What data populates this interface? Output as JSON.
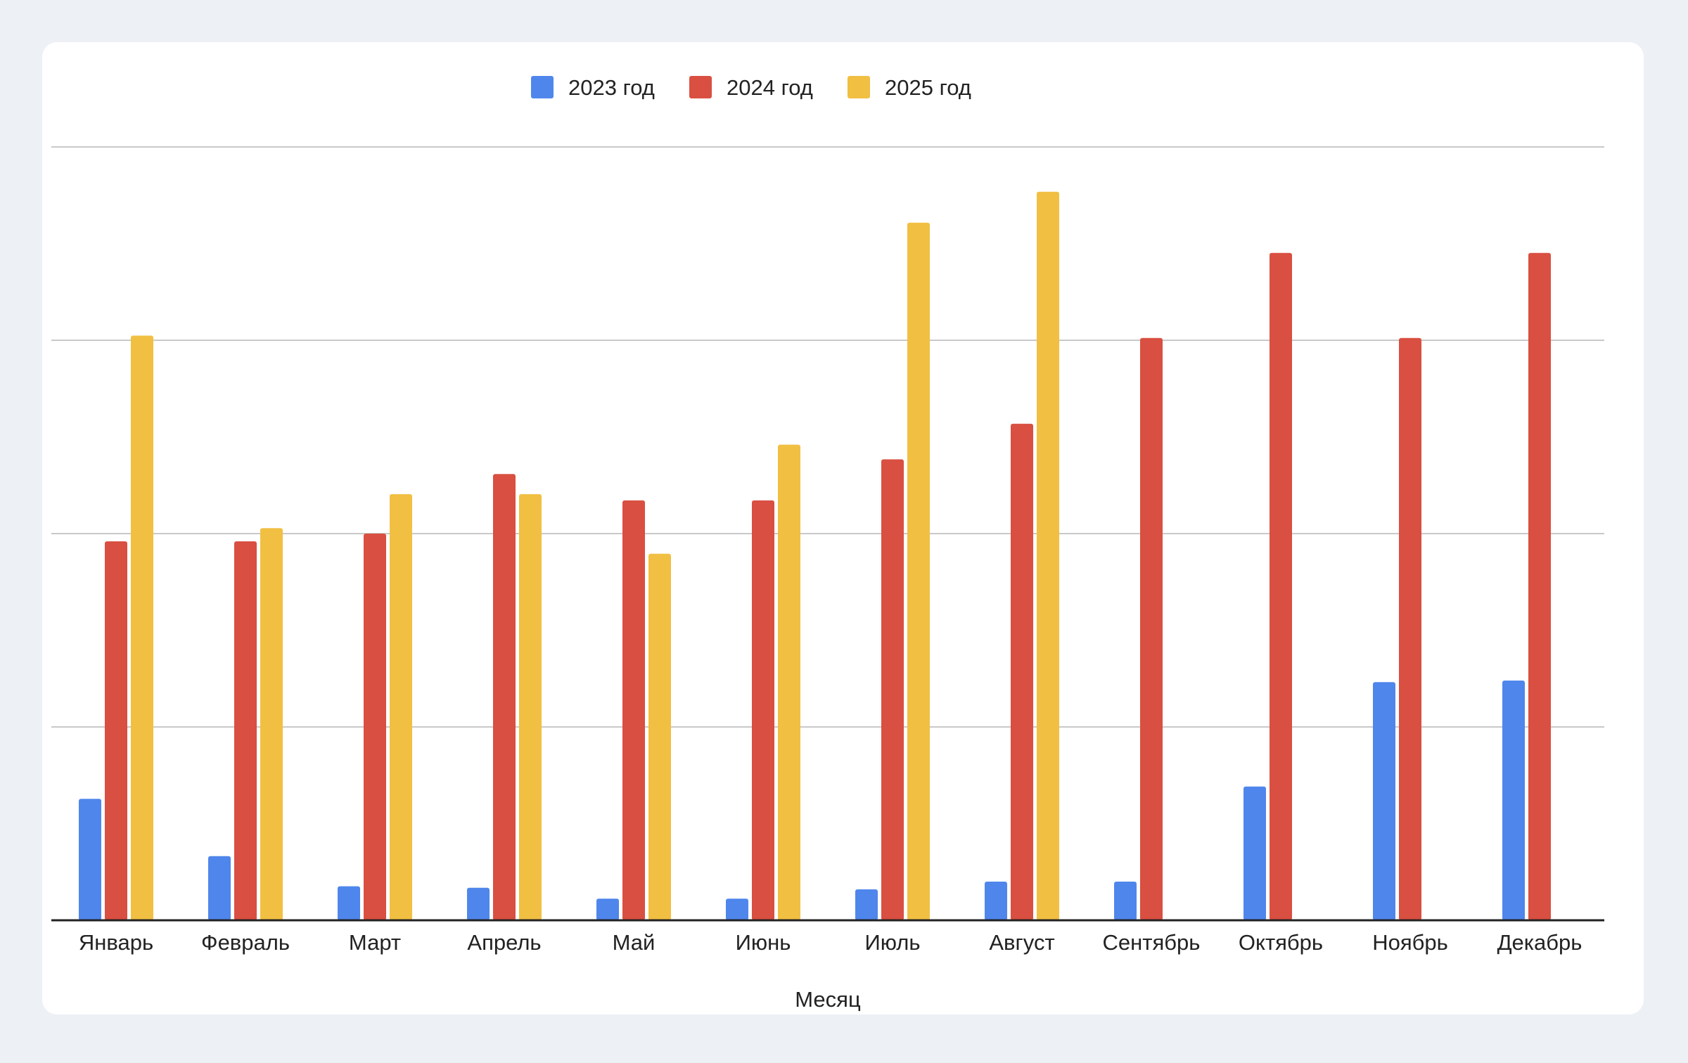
{
  "chart_data": {
    "type": "bar",
    "title": "",
    "xlabel": "Месяц",
    "ylabel": "",
    "grid": true,
    "legend_position": "top",
    "ylim": [
      0,
      100
    ],
    "categories": [
      "Январь",
      "Февраль",
      "Март",
      "Апрель",
      "Май",
      "Июнь",
      "Июль",
      "Август",
      "Сентябрь",
      "Октябрь",
      "Ноябрь",
      "Декабрь"
    ],
    "series": [
      {
        "name": "2023 год",
        "color": "#4f86ec",
        "values": [
          15.7,
          8.3,
          4.4,
          4.2,
          2.8,
          2.8,
          4.0,
          5.0,
          5.0,
          17.3,
          30.8,
          31.0
        ]
      },
      {
        "name": "2024 год",
        "color": "#d94f41",
        "values": [
          49.0,
          49.0,
          50.0,
          57.7,
          54.3,
          54.3,
          59.6,
          64.2,
          75.3,
          86.3,
          75.3,
          86.3
        ]
      },
      {
        "name": "2025 год",
        "color": "#f1bf42",
        "values": [
          75.6,
          50.7,
          55.1,
          55.1,
          47.4,
          61.5,
          90.2,
          94.2,
          null,
          null,
          null,
          null
        ]
      }
    ]
  }
}
